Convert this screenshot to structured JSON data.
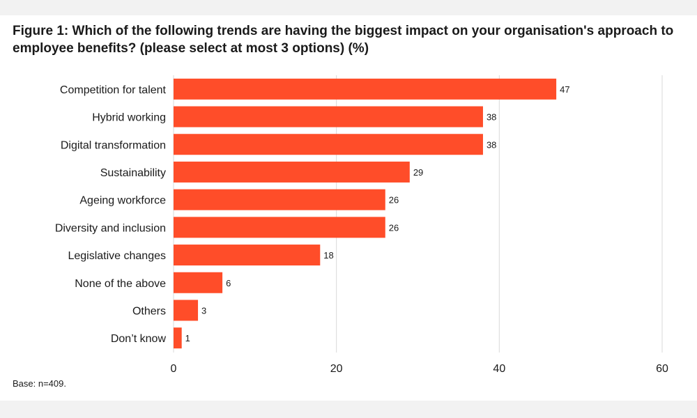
{
  "chart_data": {
    "type": "bar",
    "orientation": "horizontal",
    "title": "Figure 1: Which of the following trends are having the biggest impact on your organisation's approach to employee benefits? (please select at most 3 options) (%)",
    "categories": [
      "Competition for talent",
      "Hybrid working",
      "Digital transformation",
      "Sustainability",
      "Ageing workforce",
      "Diversity and inclusion",
      "Legislative changes",
      "None of the above",
      "Others",
      "Don’t know"
    ],
    "values": [
      47,
      38,
      38,
      29,
      26,
      26,
      18,
      6,
      3,
      1
    ],
    "value_labels": [
      "47",
      "38",
      "38",
      "29",
      "26",
      "26",
      "18",
      "6",
      "3",
      "1"
    ],
    "xlim": [
      0,
      60
    ],
    "xticks": [
      0,
      20,
      40,
      60
    ],
    "xtick_labels": [
      "0",
      "20",
      "40",
      "60"
    ],
    "grid": "vertical",
    "bar_color": "#ff4d29",
    "grid_color": "#d9d9d9",
    "footnote": "Base: n=409."
  }
}
